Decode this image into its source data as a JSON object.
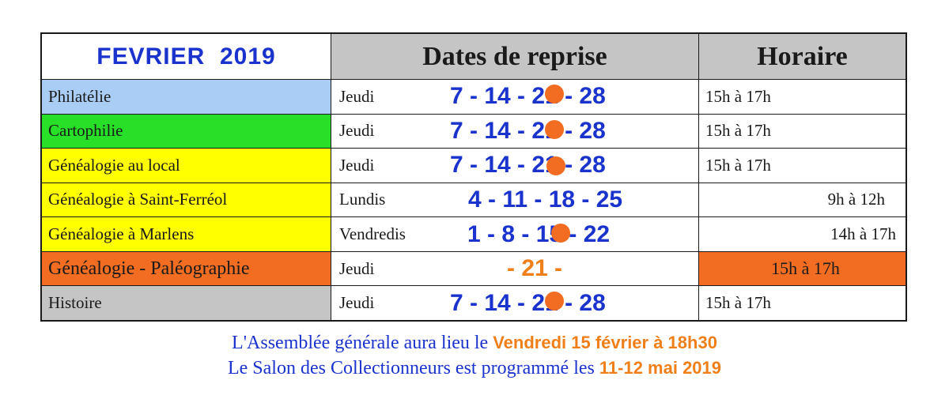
{
  "table": {
    "title": "FEVRIER  2019",
    "header_dates": "Dates de reprise",
    "header_time": "Horaire",
    "rows": [
      {
        "activity": "Philatélie",
        "day": "Jeudi",
        "dates": "7 - 14 - 21 - 28",
        "time": "15h à 17h",
        "color": "#a9cdf5"
      },
      {
        "activity": "Cartophilie",
        "day": "Jeudi",
        "dates": "7 - 14 - 21 - 28",
        "time": "15h à 17h",
        "color": "#27e027"
      },
      {
        "activity": "Généalogie au local",
        "day": "Jeudi",
        "dates": "7 - 14 - 21 - 28",
        "time": "15h à 17h",
        "color": "#ffff00"
      },
      {
        "activity": "Généalogie à Saint-Ferréol",
        "day": "Lundis",
        "dates": "4 - 11 - 18 - 25",
        "time": "9h à 12h",
        "color": "#ffff00"
      },
      {
        "activity": "Généalogie à Marlens",
        "day": "Vendredis",
        "dates": "1 - 8 - 15 - 22",
        "time": "14h à 17h",
        "color": "#ffff00"
      },
      {
        "activity": "Généalogie - Paléographie",
        "day": "Jeudi",
        "dates": "- 21 -",
        "time": "15h à 17h",
        "color": "#f26d21"
      },
      {
        "activity": "Histoire",
        "day": "Jeudi",
        "dates": "7 - 14 - 21 - 28",
        "time": "15h à 17h",
        "color": "#c5c5c5"
      }
    ]
  },
  "footer": {
    "line1_text": "L'Assemblée générale aura lieu le ",
    "line1_highlight": "Vendredi 15 février à 18h30",
    "line2_text": "Le Salon des Collectionneurs est programmé les ",
    "line2_highlight": "11-12 mai 2019"
  },
  "colors": {
    "accent_blue": "#1a33cc",
    "accent_orange": "#f07f1a",
    "dot_orange": "#f26d21"
  }
}
